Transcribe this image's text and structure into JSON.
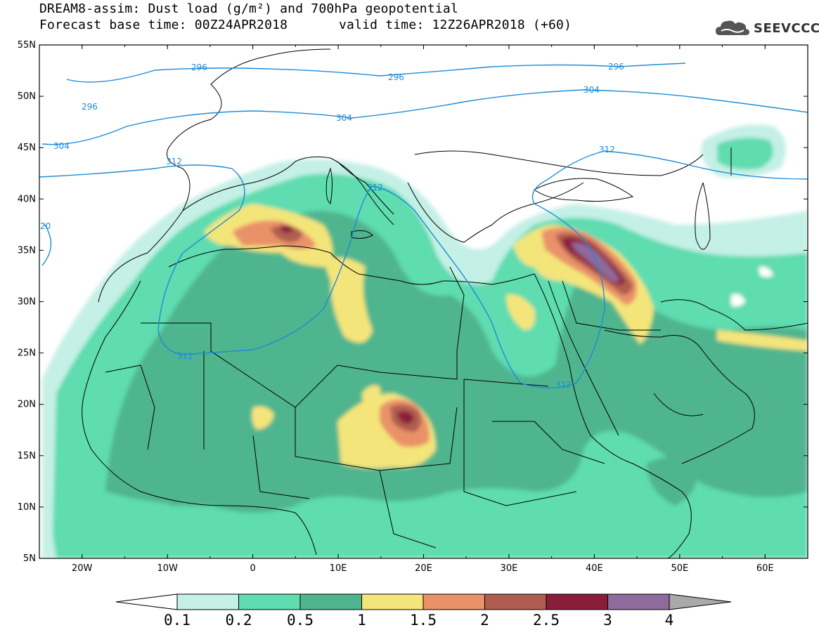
{
  "title": {
    "line1": "DREAM8-assim: Dust load (g/m²) and 700hPa geopotential",
    "line2": "Forecast base time: 00Z24APR2018",
    "line3": "valid time: 12Z26APR2018 (+60)"
  },
  "logo": {
    "text": "SEEVCCC",
    "icon": "cloud-icon"
  },
  "map": {
    "lat_labels": [
      "55N",
      "50N",
      "45N",
      "40N",
      "35N",
      "30N",
      "25N",
      "20N",
      "15N",
      "10N",
      "5N"
    ],
    "lon_labels": [
      "20W",
      "10W",
      "0",
      "10E",
      "20E",
      "30E",
      "40E",
      "50E",
      "60E"
    ],
    "extent": {
      "lon": [
        -25,
        65
      ],
      "lat": [
        5,
        55
      ]
    },
    "contour_labels": [
      "296",
      "296",
      "296",
      "296",
      "304",
      "304",
      "304",
      "312",
      "312",
      "312",
      "312",
      "312",
      "20"
    ]
  },
  "colorbar": {
    "labels": [
      "0.1",
      "0.2",
      "0.5",
      "1",
      "1.5",
      "2",
      "2.5",
      "3",
      "4"
    ],
    "colors": [
      "#c5f0e6",
      "#5fdcb0",
      "#4fb58e",
      "#f4e57a",
      "#e99269",
      "#b05d4f",
      "#8a1d3a",
      "#8e6b9c",
      "#a9a9a9"
    ]
  }
}
